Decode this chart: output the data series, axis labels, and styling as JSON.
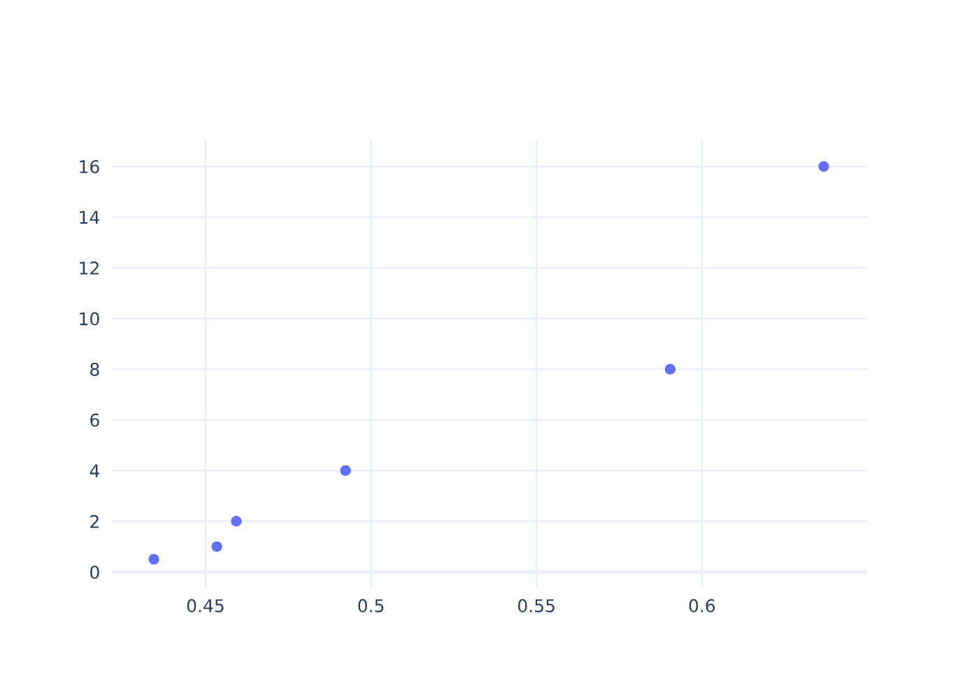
{
  "chart_data": {
    "type": "scatter",
    "x": [
      0.4344,
      0.4534,
      0.4593,
      0.4923,
      0.5904,
      0.6368
    ],
    "series": [
      {
        "color": "#636efa",
        "values": [
          0.5,
          1,
          2,
          4,
          8,
          16
        ]
      }
    ],
    "xlim": [
      0.4217,
      0.6499
    ],
    "ylim": [
      -0.6,
      17.05
    ],
    "xticks": [
      0.45,
      0.5,
      0.55,
      0.6
    ],
    "yticks": [
      0,
      2,
      4,
      6,
      8,
      10,
      12,
      14,
      16
    ],
    "grid": true,
    "marker": "circle",
    "legend": false
  }
}
